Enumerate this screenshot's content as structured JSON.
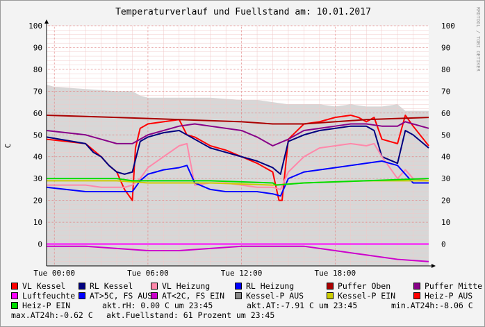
{
  "title": "Temperaturverlauf und Fuellstand am: 10.01.2017",
  "watermark": "RRDTOOL / TOBI OETIKER",
  "chart_data": {
    "type": "line",
    "ylabel": "C",
    "ylim": [
      -10,
      100
    ],
    "y_ticks": [
      0,
      10,
      20,
      30,
      40,
      50,
      60,
      70,
      80,
      90,
      100
    ],
    "x_range_hours": [
      -0.5,
      24
    ],
    "x_ticks": [
      {
        "hour": 0,
        "label": "Tue 00:00"
      },
      {
        "hour": 6,
        "label": "Tue 06:00"
      },
      {
        "hour": 12,
        "label": "Tue 12:00"
      },
      {
        "hour": 18,
        "label": "Tue 18:00"
      }
    ],
    "background_area": {
      "name": "Fuellstand",
      "color": "#d7d7d7",
      "x": [
        -0.5,
        0,
        2,
        4,
        5,
        5.5,
        6,
        8,
        10,
        12,
        13,
        14,
        15,
        16,
        17,
        18,
        19,
        20,
        21,
        22,
        22.5,
        23,
        24
      ],
      "y": [
        73,
        72,
        71,
        70,
        70,
        68,
        67,
        67,
        67,
        66,
        66,
        65,
        64,
        64,
        64,
        63,
        64,
        63,
        63,
        64,
        61,
        61,
        61
      ]
    },
    "series": [
      {
        "name": "VL Kessel",
        "color": "#ff0000",
        "x": [
          -0.5,
          2,
          2.5,
          3,
          3.5,
          4,
          4.5,
          5,
          5.2,
          5.5,
          6,
          7,
          8,
          8.5,
          9,
          10,
          11,
          12,
          13,
          14,
          14.4,
          14.6,
          15,
          16,
          17,
          18,
          19,
          19.5,
          20,
          20.5,
          21,
          22,
          22.5,
          23,
          24
        ],
        "y": [
          48,
          46,
          43,
          40,
          36,
          33,
          25,
          20,
          44,
          53,
          55,
          56,
          57,
          50,
          49,
          45,
          43,
          40,
          37,
          33,
          20,
          20,
          48,
          55,
          56,
          58,
          59,
          58,
          56,
          58,
          48,
          46,
          59,
          54,
          45
        ]
      },
      {
        "name": "RL Kessel",
        "color": "#000080",
        "x": [
          -0.5,
          2,
          2.5,
          3,
          3.5,
          4,
          4.5,
          5,
          5.5,
          6,
          7,
          8,
          9,
          10,
          11,
          12,
          13,
          14,
          14.5,
          15,
          16,
          17,
          18,
          19,
          20,
          20.5,
          21,
          22,
          22.5,
          23,
          24
        ],
        "y": [
          49,
          46,
          42,
          40,
          36,
          33,
          32,
          33,
          47,
          49,
          51,
          52,
          48,
          44,
          42,
          40,
          38,
          35,
          32,
          47,
          50,
          52,
          53,
          54,
          54,
          52,
          40,
          37,
          52,
          50,
          44
        ]
      },
      {
        "name": "VL Heizung",
        "color": "#ff88aa",
        "x": [
          -0.5,
          2,
          3,
          4,
          4.5,
          5,
          5.5,
          6,
          7,
          8,
          8.5,
          9,
          10,
          11,
          12,
          13,
          14,
          14.5,
          15,
          16,
          17,
          18,
          19,
          20,
          20.5,
          21,
          22,
          22.5,
          23,
          24
        ],
        "y": [
          27,
          27,
          26,
          26,
          26,
          27,
          30,
          35,
          40,
          45,
          46,
          27,
          28,
          28,
          27,
          26,
          26,
          25,
          33,
          40,
          44,
          45,
          46,
          45,
          46,
          40,
          30,
          34,
          30,
          29
        ]
      },
      {
        "name": "RL Heizung",
        "color": "#0000ff",
        "x": [
          -0.5,
          2,
          4,
          5,
          5.5,
          6,
          7,
          8,
          8.5,
          9,
          10,
          11,
          12,
          13,
          14,
          14.5,
          15,
          16,
          17,
          18,
          19,
          20,
          21,
          21.5,
          22,
          23,
          24
        ],
        "y": [
          26,
          24,
          24,
          24,
          29,
          32,
          34,
          35,
          36,
          28,
          25,
          24,
          24,
          24,
          23,
          22,
          30,
          33,
          34,
          35,
          36,
          37,
          38,
          37,
          36,
          28,
          28
        ]
      },
      {
        "name": "Puffer Oben",
        "color": "#aa0000",
        "x": [
          -0.5,
          4,
          8,
          12,
          14,
          16,
          20,
          24
        ],
        "y": [
          59,
          58,
          57,
          56,
          55,
          55,
          57,
          58
        ]
      },
      {
        "name": "Puffer Mitte",
        "color": "#880088",
        "x": [
          -0.5,
          2,
          3,
          4,
          5,
          6,
          8,
          9,
          10,
          12,
          13,
          14,
          15,
          16,
          17,
          18,
          19,
          20,
          21,
          22,
          22.5,
          23,
          24
        ],
        "y": [
          52,
          50,
          48,
          46,
          46,
          50,
          54,
          55,
          54,
          52,
          49,
          45,
          48,
          52,
          53,
          54,
          55,
          55,
          54,
          54,
          56,
          55,
          53
        ]
      },
      {
        "name": "Luftfeuchte",
        "color": "#ff00ff",
        "x": [
          -0.5,
          24
        ],
        "y": [
          0,
          0
        ]
      },
      {
        "name": "AT<2C, FS EIN",
        "color": "#cc00cc",
        "x": [
          -0.5,
          2,
          4,
          6,
          8,
          10,
          12,
          13,
          14,
          16,
          18,
          20,
          22,
          24
        ],
        "y": [
          -1,
          -1,
          -2,
          -3,
          -3,
          -2,
          -1,
          -1,
          -1,
          -1,
          -3,
          -5,
          -7,
          -8
        ]
      },
      {
        "name": "Kessel-P EIN",
        "color": "#cccc00",
        "x": [
          -0.5,
          4,
          6,
          10,
          14,
          16,
          20,
          24
        ],
        "y": [
          29,
          29,
          28,
          28,
          27,
          28,
          29,
          29
        ]
      },
      {
        "name": "Heiz-P EIN",
        "color": "#00dd00",
        "x": [
          -0.5,
          4,
          5,
          6,
          10,
          14,
          14.2,
          16,
          20,
          24
        ],
        "y": [
          30,
          30,
          29,
          29,
          29,
          28,
          27,
          28,
          29,
          30
        ]
      }
    ]
  },
  "legend": [
    {
      "label": "VL Kessel",
      "color": "#ff0000"
    },
    {
      "label": "RL Kessel",
      "color": "#000080"
    },
    {
      "label": "VL Heizung",
      "color": "#ff88aa"
    },
    {
      "label": "RL Heizung",
      "color": "#0000ff"
    },
    {
      "label": "Puffer Oben",
      "color": "#aa0000"
    },
    {
      "label": "Puffer Mitte",
      "color": "#880088"
    },
    {
      "label": "Luftfeuchte",
      "color": "#ff00ff"
    },
    {
      "label": "AT>5C, FS AUS",
      "color": "#0000ff"
    },
    {
      "label": "AT<2C, FS EIN",
      "color": "#cc00cc"
    },
    {
      "label": "Kessel-P AUS",
      "color": "#888888"
    },
    {
      "label": "Kessel-P EIN",
      "color": "#cccc00"
    },
    {
      "label": "Heiz-P AUS",
      "color": "#ff0000"
    },
    {
      "label": "Heiz-P EIN",
      "color": "#00dd00"
    }
  ],
  "info": {
    "rh": "akt.rH: 0.00 C um 23:45",
    "at": "akt.AT:-7.91 C um 23:45",
    "min": "min.AT24h:-8.06 C",
    "max": "max.AT24h:-0.62 C",
    "fuellstand": "akt.Fuellstand:   61 Prozent um 23:45"
  }
}
